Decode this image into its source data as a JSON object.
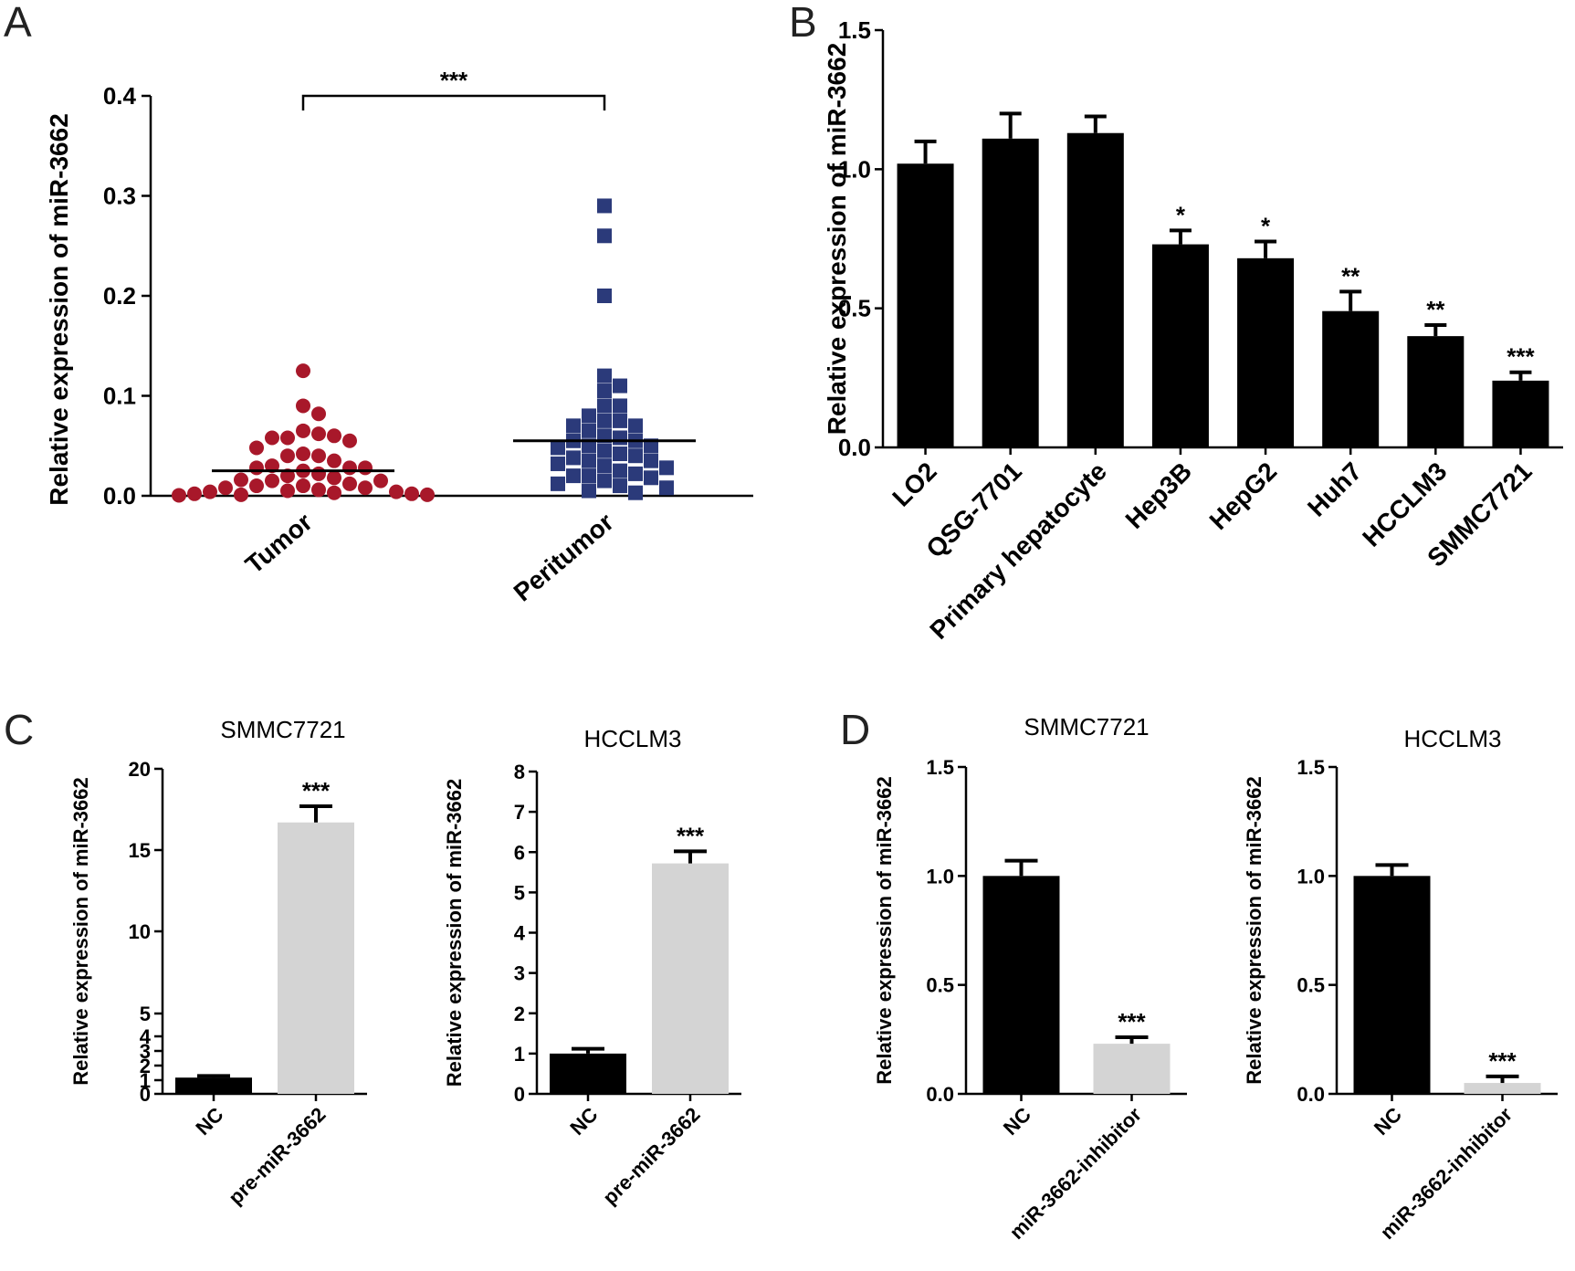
{
  "panel_letters": [
    "A",
    "B",
    "C",
    "D"
  ],
  "colors": {
    "tumor": "#a8182a",
    "peritumor": "#2b3a7a",
    "black_bar": "#000000",
    "gray_bar": "#d4d4d4"
  },
  "chart_data": [
    {
      "id": "A",
      "type": "scatter",
      "title": "",
      "ylabel": "Relative  expression of miR-3662",
      "xlabel": "",
      "ylim": [
        0,
        0.4
      ],
      "yticks": [
        "0.0",
        "0.1",
        "0.2",
        "0.3",
        "0.4"
      ],
      "categories": [
        "Tumor",
        "Peritumor"
      ],
      "significance": "***",
      "series": [
        {
          "name": "Tumor",
          "marker": "circle",
          "mean": 0.025,
          "values": [
            0.125,
            0.09,
            0.082,
            0.065,
            0.062,
            0.058,
            0.06,
            0.058,
            0.055,
            0.042,
            0.048,
            0.04,
            0.04,
            0.035,
            0.03,
            0.028,
            0.028,
            0.028,
            0.025,
            0.022,
            0.02,
            0.018,
            0.016,
            0.015,
            0.015,
            0.012,
            0.01,
            0.01,
            0.008,
            0.008,
            0.006,
            0.005,
            0.004,
            0.004,
            0.003,
            0.002,
            0.002,
            0.001,
            0.001,
            0.0005
          ]
        },
        {
          "name": "Peritumor",
          "marker": "square",
          "mean": 0.055,
          "values": [
            0.29,
            0.26,
            0.2,
            0.12,
            0.11,
            0.105,
            0.09,
            0.09,
            0.08,
            0.075,
            0.075,
            0.07,
            0.07,
            0.065,
            0.06,
            0.058,
            0.055,
            0.055,
            0.05,
            0.05,
            0.048,
            0.045,
            0.042,
            0.04,
            0.038,
            0.035,
            0.035,
            0.032,
            0.03,
            0.028,
            0.025,
            0.022,
            0.02,
            0.02,
            0.018,
            0.015,
            0.012,
            0.01,
            0.008,
            0.005,
            0.003
          ]
        }
      ]
    },
    {
      "id": "B",
      "type": "bar",
      "title": "",
      "ylabel": "Relative expression of miR-3662",
      "xlabel": "",
      "ylim": [
        0,
        1.5
      ],
      "yticks": [
        "0.0",
        "0.5",
        "1.0",
        "1.5"
      ],
      "categories": [
        "LO2",
        "QSG-7701",
        "Primary hepatocyte",
        "Hep3B",
        "HepG2",
        "Huh7",
        "HCCLM3",
        "SMMC7721"
      ],
      "values": [
        1.02,
        1.11,
        1.13,
        0.73,
        0.68,
        0.49,
        0.4,
        0.24
      ],
      "errors": [
        0.08,
        0.09,
        0.06,
        0.05,
        0.06,
        0.07,
        0.04,
        0.03
      ],
      "significance": [
        "",
        "",
        "",
        "*",
        "*",
        "**",
        "**",
        "***"
      ]
    },
    {
      "id": "C-SMMC7721",
      "type": "bar",
      "title": "SMMC7721",
      "ylabel": "Relative expression of miR-3662",
      "xlabel": "",
      "ylim": [
        0,
        20
      ],
      "yticks": [
        "0",
        "1",
        "2",
        "3",
        "4",
        "5",
        "10",
        "15",
        "20"
      ],
      "categories": [
        "NC",
        "pre-miR-3662"
      ],
      "values": [
        1.0,
        16.7
      ],
      "errors": [
        0.1,
        1.0
      ],
      "significance": [
        "",
        "***"
      ]
    },
    {
      "id": "C-HCCLM3",
      "type": "bar",
      "title": "HCCLM3",
      "ylabel": "Relative expression of miR-3662",
      "xlabel": "",
      "ylim": [
        0,
        8
      ],
      "yticks": [
        "0",
        "1",
        "2",
        "3",
        "4",
        "5",
        "6",
        "7",
        "8"
      ],
      "categories": [
        "NC",
        "pre-miR-3662"
      ],
      "values": [
        1.0,
        5.72
      ],
      "errors": [
        0.12,
        0.3
      ],
      "significance": [
        "",
        "***"
      ]
    },
    {
      "id": "D-SMMC7721",
      "type": "bar",
      "title": "SMMC7721",
      "ylabel": "Relative expression of miR-3662",
      "xlabel": "",
      "ylim": [
        0,
        1.5
      ],
      "yticks": [
        "0.0",
        "0.5",
        "1.0",
        "1.5"
      ],
      "categories": [
        "NC",
        "miR-3662-inhibitor"
      ],
      "values": [
        1.0,
        0.23
      ],
      "errors": [
        0.07,
        0.03
      ],
      "significance": [
        "",
        "***"
      ]
    },
    {
      "id": "D-HCCLM3",
      "type": "bar",
      "title": "HCCLM3",
      "ylabel": "Relative expression of miR-3662",
      "xlabel": "",
      "ylim": [
        0,
        1.5
      ],
      "yticks": [
        "0.0",
        "0.5",
        "1.0",
        "1.5"
      ],
      "categories": [
        "NC",
        "miR-3662-inhibitor"
      ],
      "values": [
        1.0,
        0.05
      ],
      "errors": [
        0.05,
        0.03
      ],
      "significance": [
        "",
        "***"
      ]
    }
  ]
}
